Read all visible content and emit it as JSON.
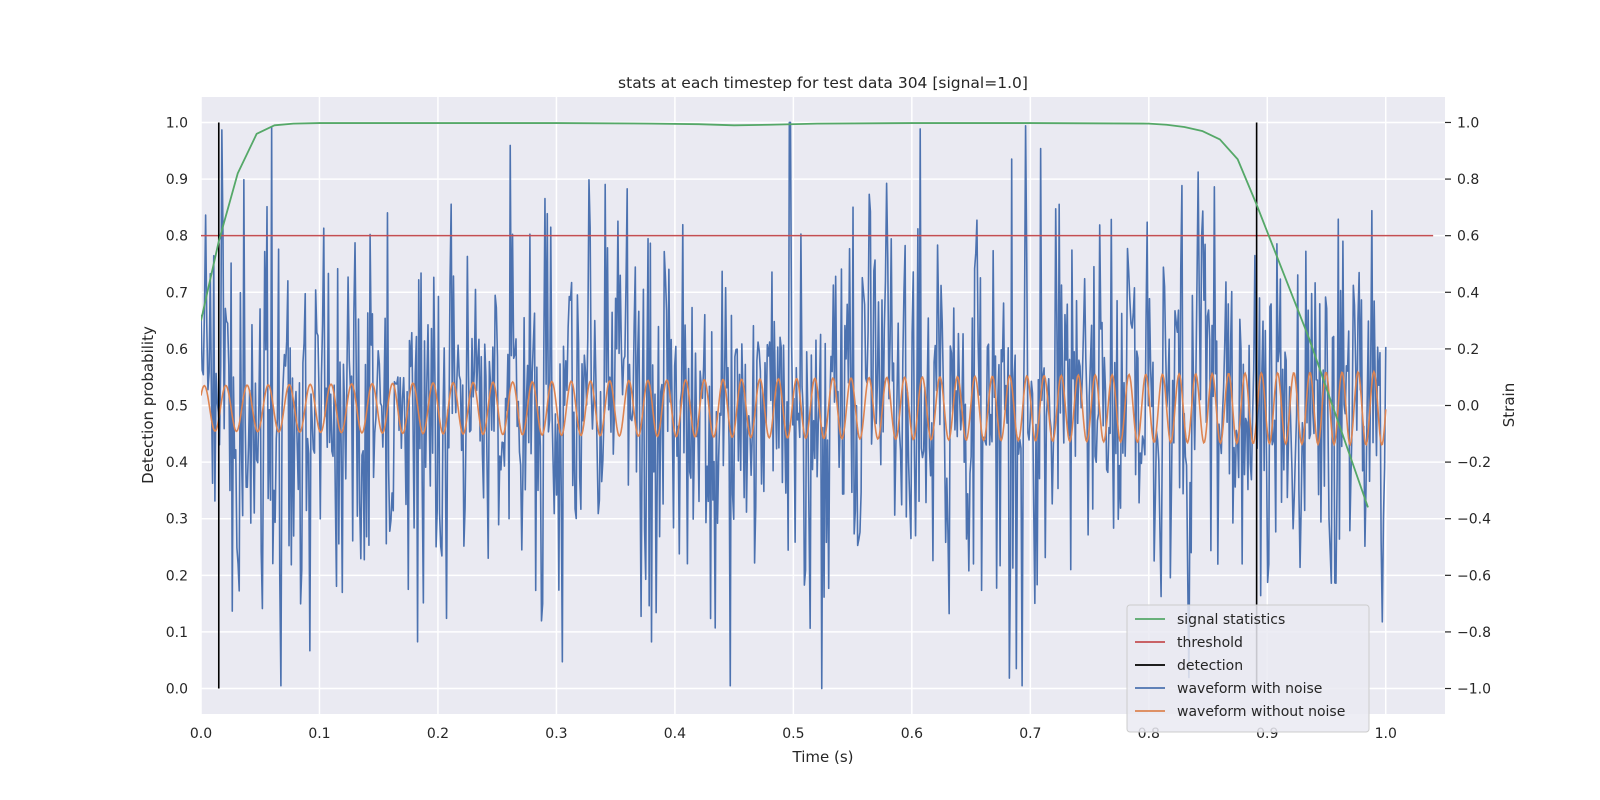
{
  "chart_data": {
    "type": "line",
    "title": "stats at each timestep for test data 304 [signal=1.0]",
    "xlabel": "Time (s)",
    "ylabel": "Detection probability",
    "ylabel_right": "Strain",
    "xlim": [
      0.0,
      1.05
    ],
    "ylim": [
      -0.045,
      1.045
    ],
    "ylim_right": [
      -1.09,
      1.09
    ],
    "x_ticks": [
      0.0,
      0.1,
      0.2,
      0.3,
      0.4,
      0.5,
      0.6,
      0.7,
      0.8,
      0.9,
      1.0
    ],
    "x_tick_labels": [
      "0.0",
      "0.1",
      "0.2",
      "0.3",
      "0.4",
      "0.5",
      "0.6",
      "0.7",
      "0.8",
      "0.9",
      "1.0"
    ],
    "y_ticks": [
      0.0,
      0.1,
      0.2,
      0.3,
      0.4,
      0.5,
      0.6,
      0.7,
      0.8,
      0.9,
      1.0
    ],
    "y_tick_labels": [
      "0.0",
      "0.1",
      "0.2",
      "0.3",
      "0.4",
      "0.5",
      "0.6",
      "0.7",
      "0.8",
      "0.9",
      "1.0"
    ],
    "y_right_ticks": [
      -1.0,
      -0.8,
      -0.6,
      -0.4,
      -0.2,
      0.0,
      0.2,
      0.4,
      0.6,
      0.8,
      1.0
    ],
    "y_right_tick_labels": [
      "−1.0",
      "−0.8",
      "−0.6",
      "−0.4",
      "−0.2",
      "0.0",
      "0.2",
      "0.4",
      "0.6",
      "0.8",
      "1.0"
    ],
    "grid": true,
    "legend_position": "lower-right",
    "colors": {
      "background": "#eaeaf2",
      "grid": "#ffffff",
      "signal": "#55a868",
      "threshold": "#c44e52",
      "detection": "#000000",
      "noisy": "#4c72b0",
      "clean": "#dd8452"
    },
    "signal_statistics": {
      "name": "signal statistics",
      "axis": "left",
      "x": [
        0.0,
        0.015,
        0.031,
        0.047,
        0.062,
        0.078,
        0.1,
        0.2,
        0.3,
        0.38,
        0.42,
        0.45,
        0.48,
        0.52,
        0.6,
        0.7,
        0.8,
        0.815,
        0.83,
        0.845,
        0.86,
        0.875,
        0.89,
        0.905,
        0.92,
        0.935,
        0.95,
        0.965,
        0.985
      ],
      "y": [
        0.65,
        0.79,
        0.91,
        0.98,
        0.995,
        0.998,
        0.999,
        0.999,
        0.999,
        0.998,
        0.997,
        0.995,
        0.996,
        0.998,
        0.999,
        0.999,
        0.998,
        0.996,
        0.992,
        0.985,
        0.97,
        0.935,
        0.86,
        0.78,
        0.7,
        0.62,
        0.53,
        0.44,
        0.32
      ]
    },
    "threshold": {
      "name": "threshold",
      "axis": "left",
      "y": 0.8,
      "x_range": [
        0.0,
        1.04
      ]
    },
    "detection": {
      "name": "detection",
      "axis": "left",
      "x": [
        0.015,
        0.891
      ],
      "y_range": [
        0.0,
        1.0
      ]
    },
    "waveform_with_noise": {
      "name": "waveform with noise",
      "axis": "right",
      "x_range": [
        0.0,
        1.0
      ],
      "n_points": 1024,
      "y_range_approx": [
        -1.0,
        1.0
      ],
      "description_values": "noisy strain; samples mostly within ±0.7, peaks near 1.0 (t≈0.497) and troughs near −1.0 (t≈0.524)"
    },
    "waveform_without_noise": {
      "name": "waveform without noise",
      "axis": "right",
      "x_range": [
        0.0,
        1.0
      ],
      "amplitude_start": 0.08,
      "amplitude_end": 0.13,
      "offset": -0.01,
      "cycles": 55
    },
    "legend": {
      "items": [
        {
          "label": "signal statistics",
          "color": "#55a868"
        },
        {
          "label": "threshold",
          "color": "#c44e52"
        },
        {
          "label": "detection",
          "color": "#000000"
        },
        {
          "label": "waveform with noise",
          "color": "#4c72b0"
        },
        {
          "label": "waveform without noise",
          "color": "#dd8452"
        }
      ]
    }
  }
}
